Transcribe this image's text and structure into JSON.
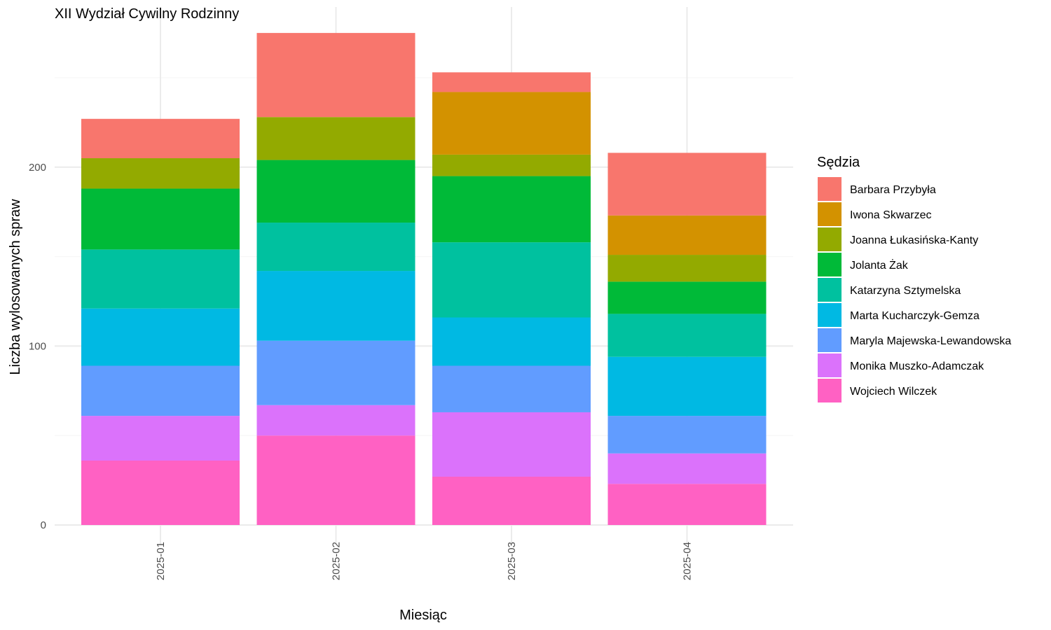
{
  "chart_data": {
    "type": "bar",
    "stacked": true,
    "title": "XII Wydział Cywilny Rodzinny",
    "xlabel": "Miesiąc",
    "ylabel": "Liczba wylosowanych spraw",
    "categories": [
      "2025-01",
      "2025-02",
      "2025-03",
      "2025-04"
    ],
    "ylim": [
      0,
      290
    ],
    "yticks": [
      0,
      100,
      200
    ],
    "grid": true,
    "legend": {
      "title": "Sędzia",
      "position": "right"
    },
    "series": [
      {
        "name": "Barbara Przybyła",
        "color": "#F8766D",
        "values": [
          22,
          47,
          11,
          35
        ]
      },
      {
        "name": "Iwona Skwarzec",
        "color": "#D39200",
        "values": [
          0,
          0,
          35,
          22
        ]
      },
      {
        "name": "Joanna Łukasińska-Kanty",
        "color": "#93AA00",
        "values": [
          17,
          24,
          12,
          15
        ]
      },
      {
        "name": "Jolanta Żak",
        "color": "#00BA38",
        "values": [
          34,
          35,
          37,
          18
        ]
      },
      {
        "name": "Katarzyna Sztymelska",
        "color": "#00C19F",
        "values": [
          33,
          27,
          42,
          24
        ]
      },
      {
        "name": "Marta Kucharczyk-Gemza",
        "color": "#00B9E3",
        "values": [
          32,
          39,
          27,
          33
        ]
      },
      {
        "name": "Maryla Majewska-Lewandowska",
        "color": "#619CFF",
        "values": [
          28,
          36,
          26,
          21
        ]
      },
      {
        "name": "Monika Muszko-Adamczak",
        "color": "#DB72FB",
        "values": [
          25,
          17,
          36,
          17
        ]
      },
      {
        "name": "Wojciech Wilczek",
        "color": "#FF61C3",
        "values": [
          36,
          50,
          27,
          23
        ]
      }
    ]
  }
}
